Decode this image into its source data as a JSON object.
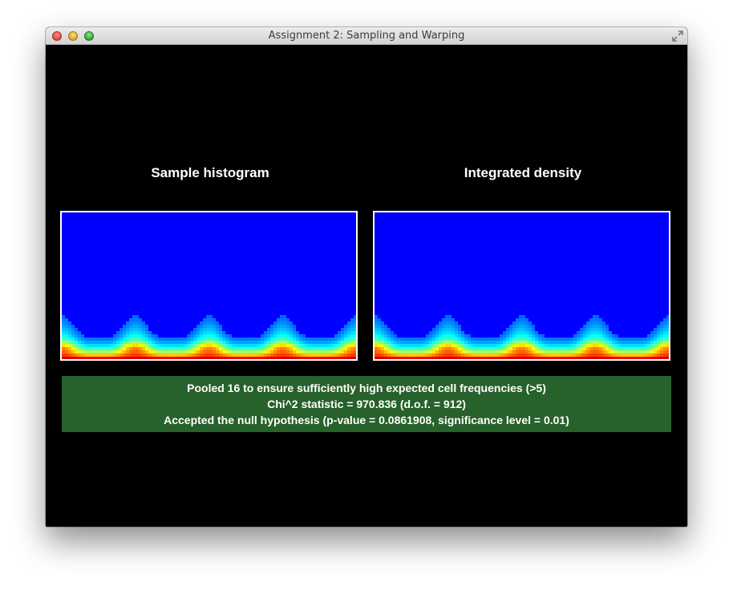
{
  "window": {
    "title": "Assignment 2: Sampling and Warping"
  },
  "icons": {
    "close": "close-icon",
    "minimize": "minimize-icon",
    "zoom": "zoom-icon",
    "fullscreen": "fullscreen-icon"
  },
  "colors": {
    "background": "#000000",
    "status_panel": "#27612b",
    "plot_low": "#0000ff",
    "plot_high": "#ff0000"
  },
  "panels": {
    "left_title": "Sample histogram",
    "right_title": "Integrated density"
  },
  "heatmap": {
    "colormap": "jet",
    "peaks": 4
  },
  "status": {
    "line1": "Pooled 16 to ensure sufficiently high expected cell frequencies (>5)",
    "line2": "Chi^2 statistic = 970.836 (d.o.f. = 912)",
    "line3": "Accepted the null hypothesis (p-value = 0.0861908, significance level = 0.01)"
  }
}
